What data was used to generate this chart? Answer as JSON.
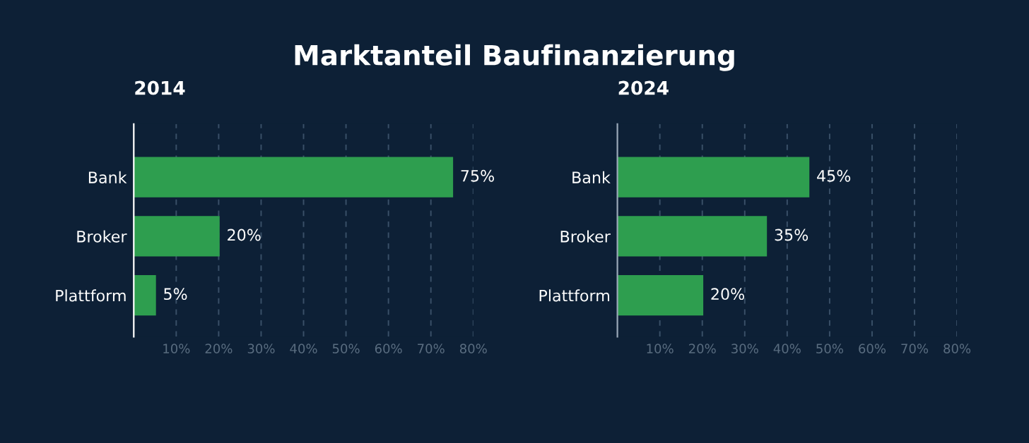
{
  "chart_data": [
    {
      "type": "bar",
      "orientation": "horizontal",
      "title": "Marktanteil Baufinanzierung",
      "subtitle": "2014",
      "categories": [
        "Bank",
        "Broker",
        "Plattform"
      ],
      "values": [
        75,
        20,
        5
      ],
      "value_labels": [
        "75%",
        "20%",
        "5%"
      ],
      "color": "#2e9e4f",
      "xlim": [
        0,
        80
      ],
      "xticks": [
        {
          "value": 10,
          "label": "10%"
        },
        {
          "value": 20,
          "label": "20%"
        },
        {
          "value": 30,
          "label": "30%"
        },
        {
          "value": 40,
          "label": "40%"
        },
        {
          "value": 50,
          "label": "50%"
        },
        {
          "value": 60,
          "label": "60%"
        },
        {
          "value": 70,
          "label": "70%"
        },
        {
          "value": 80,
          "label": "80%"
        }
      ],
      "grid": "x"
    },
    {
      "type": "bar",
      "orientation": "horizontal",
      "subtitle": "2024",
      "categories": [
        "Bank",
        "Broker",
        "Plattform"
      ],
      "values": [
        45,
        35,
        20
      ],
      "value_labels": [
        "45%",
        "35%",
        "20%"
      ],
      "color": "#2e9e4f",
      "xlim": [
        0,
        80
      ],
      "xticks": [
        {
          "value": 10,
          "label": "10%"
        },
        {
          "value": 20,
          "label": "20%"
        },
        {
          "value": 30,
          "label": "30%"
        },
        {
          "value": 40,
          "label": "40%"
        },
        {
          "value": 50,
          "label": "50%"
        },
        {
          "value": 60,
          "label": "60%"
        },
        {
          "value": 70,
          "label": "70%"
        },
        {
          "value": 80,
          "label": "80%"
        }
      ],
      "grid": "x"
    }
  ]
}
